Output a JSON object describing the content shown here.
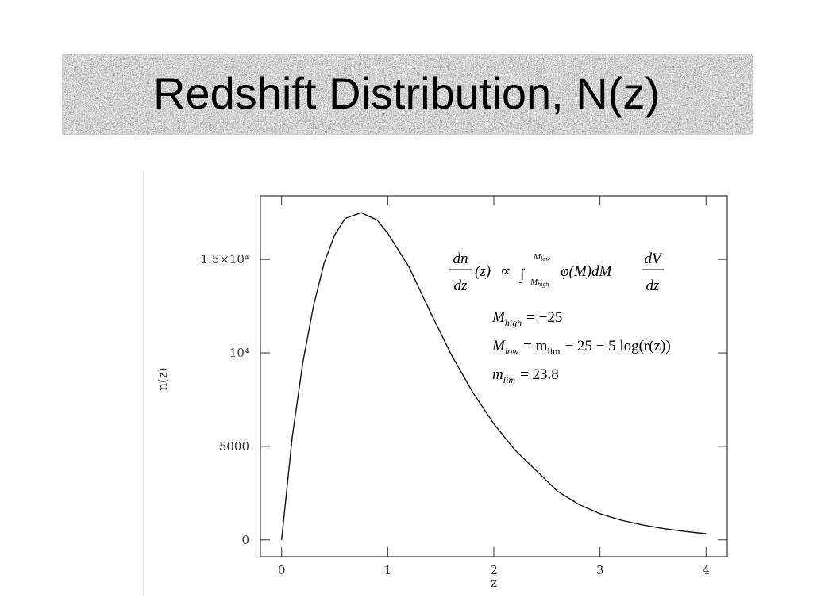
{
  "chart_data": {
    "type": "line",
    "title": "Redshift Distribution, N(z)",
    "x_label": "z",
    "y_label": "n(z)",
    "x": [
      0,
      0.1,
      0.2,
      0.3,
      0.4,
      0.5,
      0.6,
      0.75,
      0.9,
      1.0,
      1.2,
      1.4,
      1.6,
      1.8,
      2.0,
      2.2,
      2.4,
      2.6,
      2.8,
      3.0,
      3.2,
      3.4,
      3.6,
      3.8,
      4.0
    ],
    "series": [
      {
        "name": "n(z)",
        "color": "#111111",
        "values": [
          0,
          5500,
          9500,
          12500,
          14800,
          16300,
          17200,
          17500,
          17100,
          16400,
          14600,
          12200,
          9900,
          7900,
          6200,
          4800,
          3700,
          2600,
          1900,
          1400,
          1050,
          800,
          600,
          450,
          330
        ]
      }
    ],
    "xlim": [
      -0.2,
      4.2
    ],
    "ylim": [
      -900,
      18400
    ],
    "xticks": [
      0,
      1,
      2,
      3,
      4
    ],
    "yticks": [
      0,
      5000,
      {
        "value": 10000,
        "label": "10⁴"
      },
      {
        "value": 15000,
        "label": "1.5×10⁴"
      }
    ],
    "grid": false,
    "formula": {
      "lhs_num": "dn",
      "lhs_den": "dz",
      "lhs_arg": "(z)",
      "relation": "∝",
      "integral": "∫",
      "upper_main": "M",
      "upper_sub": "low",
      "lower_main": "M",
      "lower_sub": "high",
      "integrand": "φ(M)dM",
      "rhs_num": "dV",
      "rhs_den": "dz"
    },
    "conditions": [
      {
        "symbol": "M",
        "sub": "high",
        "rhs": "= −25"
      },
      {
        "symbol": "M",
        "sub": "low",
        "rhs": "= m",
        "rhs_sub": "lim",
        "tail": "− 25 − 5 log(r(z))"
      },
      {
        "symbol": "m",
        "sub": "lim",
        "rhs": "= 23.8"
      }
    ]
  }
}
